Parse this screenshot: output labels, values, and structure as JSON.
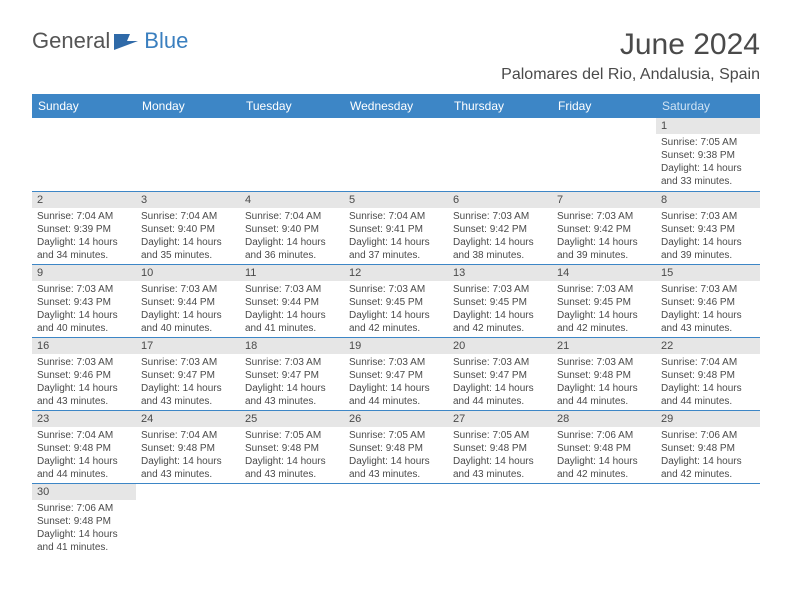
{
  "logo": {
    "part1": "General",
    "part2": "Blue"
  },
  "title": "June 2024",
  "location": "Palomares del Rio, Andalusia, Spain",
  "colors": {
    "header_bg": "#3d86c6",
    "header_text": "#ffffff",
    "daynum_bg": "#e6e6e6",
    "text": "#4a4a4a",
    "row_border": "#3d86c6"
  },
  "weekdays": [
    "Sunday",
    "Monday",
    "Tuesday",
    "Wednesday",
    "Thursday",
    "Friday",
    "Saturday"
  ],
  "weeks": [
    [
      null,
      null,
      null,
      null,
      null,
      null,
      {
        "n": "1",
        "sr": "Sunrise: 7:05 AM",
        "ss": "Sunset: 9:38 PM",
        "d1": "Daylight: 14 hours",
        "d2": "and 33 minutes."
      }
    ],
    [
      {
        "n": "2",
        "sr": "Sunrise: 7:04 AM",
        "ss": "Sunset: 9:39 PM",
        "d1": "Daylight: 14 hours",
        "d2": "and 34 minutes."
      },
      {
        "n": "3",
        "sr": "Sunrise: 7:04 AM",
        "ss": "Sunset: 9:40 PM",
        "d1": "Daylight: 14 hours",
        "d2": "and 35 minutes."
      },
      {
        "n": "4",
        "sr": "Sunrise: 7:04 AM",
        "ss": "Sunset: 9:40 PM",
        "d1": "Daylight: 14 hours",
        "d2": "and 36 minutes."
      },
      {
        "n": "5",
        "sr": "Sunrise: 7:04 AM",
        "ss": "Sunset: 9:41 PM",
        "d1": "Daylight: 14 hours",
        "d2": "and 37 minutes."
      },
      {
        "n": "6",
        "sr": "Sunrise: 7:03 AM",
        "ss": "Sunset: 9:42 PM",
        "d1": "Daylight: 14 hours",
        "d2": "and 38 minutes."
      },
      {
        "n": "7",
        "sr": "Sunrise: 7:03 AM",
        "ss": "Sunset: 9:42 PM",
        "d1": "Daylight: 14 hours",
        "d2": "and 39 minutes."
      },
      {
        "n": "8",
        "sr": "Sunrise: 7:03 AM",
        "ss": "Sunset: 9:43 PM",
        "d1": "Daylight: 14 hours",
        "d2": "and 39 minutes."
      }
    ],
    [
      {
        "n": "9",
        "sr": "Sunrise: 7:03 AM",
        "ss": "Sunset: 9:43 PM",
        "d1": "Daylight: 14 hours",
        "d2": "and 40 minutes."
      },
      {
        "n": "10",
        "sr": "Sunrise: 7:03 AM",
        "ss": "Sunset: 9:44 PM",
        "d1": "Daylight: 14 hours",
        "d2": "and 40 minutes."
      },
      {
        "n": "11",
        "sr": "Sunrise: 7:03 AM",
        "ss": "Sunset: 9:44 PM",
        "d1": "Daylight: 14 hours",
        "d2": "and 41 minutes."
      },
      {
        "n": "12",
        "sr": "Sunrise: 7:03 AM",
        "ss": "Sunset: 9:45 PM",
        "d1": "Daylight: 14 hours",
        "d2": "and 42 minutes."
      },
      {
        "n": "13",
        "sr": "Sunrise: 7:03 AM",
        "ss": "Sunset: 9:45 PM",
        "d1": "Daylight: 14 hours",
        "d2": "and 42 minutes."
      },
      {
        "n": "14",
        "sr": "Sunrise: 7:03 AM",
        "ss": "Sunset: 9:45 PM",
        "d1": "Daylight: 14 hours",
        "d2": "and 42 minutes."
      },
      {
        "n": "15",
        "sr": "Sunrise: 7:03 AM",
        "ss": "Sunset: 9:46 PM",
        "d1": "Daylight: 14 hours",
        "d2": "and 43 minutes."
      }
    ],
    [
      {
        "n": "16",
        "sr": "Sunrise: 7:03 AM",
        "ss": "Sunset: 9:46 PM",
        "d1": "Daylight: 14 hours",
        "d2": "and 43 minutes."
      },
      {
        "n": "17",
        "sr": "Sunrise: 7:03 AM",
        "ss": "Sunset: 9:47 PM",
        "d1": "Daylight: 14 hours",
        "d2": "and 43 minutes."
      },
      {
        "n": "18",
        "sr": "Sunrise: 7:03 AM",
        "ss": "Sunset: 9:47 PM",
        "d1": "Daylight: 14 hours",
        "d2": "and 43 minutes."
      },
      {
        "n": "19",
        "sr": "Sunrise: 7:03 AM",
        "ss": "Sunset: 9:47 PM",
        "d1": "Daylight: 14 hours",
        "d2": "and 44 minutes."
      },
      {
        "n": "20",
        "sr": "Sunrise: 7:03 AM",
        "ss": "Sunset: 9:47 PM",
        "d1": "Daylight: 14 hours",
        "d2": "and 44 minutes."
      },
      {
        "n": "21",
        "sr": "Sunrise: 7:03 AM",
        "ss": "Sunset: 9:48 PM",
        "d1": "Daylight: 14 hours",
        "d2": "and 44 minutes."
      },
      {
        "n": "22",
        "sr": "Sunrise: 7:04 AM",
        "ss": "Sunset: 9:48 PM",
        "d1": "Daylight: 14 hours",
        "d2": "and 44 minutes."
      }
    ],
    [
      {
        "n": "23",
        "sr": "Sunrise: 7:04 AM",
        "ss": "Sunset: 9:48 PM",
        "d1": "Daylight: 14 hours",
        "d2": "and 44 minutes."
      },
      {
        "n": "24",
        "sr": "Sunrise: 7:04 AM",
        "ss": "Sunset: 9:48 PM",
        "d1": "Daylight: 14 hours",
        "d2": "and 43 minutes."
      },
      {
        "n": "25",
        "sr": "Sunrise: 7:05 AM",
        "ss": "Sunset: 9:48 PM",
        "d1": "Daylight: 14 hours",
        "d2": "and 43 minutes."
      },
      {
        "n": "26",
        "sr": "Sunrise: 7:05 AM",
        "ss": "Sunset: 9:48 PM",
        "d1": "Daylight: 14 hours",
        "d2": "and 43 minutes."
      },
      {
        "n": "27",
        "sr": "Sunrise: 7:05 AM",
        "ss": "Sunset: 9:48 PM",
        "d1": "Daylight: 14 hours",
        "d2": "and 43 minutes."
      },
      {
        "n": "28",
        "sr": "Sunrise: 7:06 AM",
        "ss": "Sunset: 9:48 PM",
        "d1": "Daylight: 14 hours",
        "d2": "and 42 minutes."
      },
      {
        "n": "29",
        "sr": "Sunrise: 7:06 AM",
        "ss": "Sunset: 9:48 PM",
        "d1": "Daylight: 14 hours",
        "d2": "and 42 minutes."
      }
    ],
    [
      {
        "n": "30",
        "sr": "Sunrise: 7:06 AM",
        "ss": "Sunset: 9:48 PM",
        "d1": "Daylight: 14 hours",
        "d2": "and 41 minutes."
      },
      null,
      null,
      null,
      null,
      null,
      null
    ]
  ]
}
